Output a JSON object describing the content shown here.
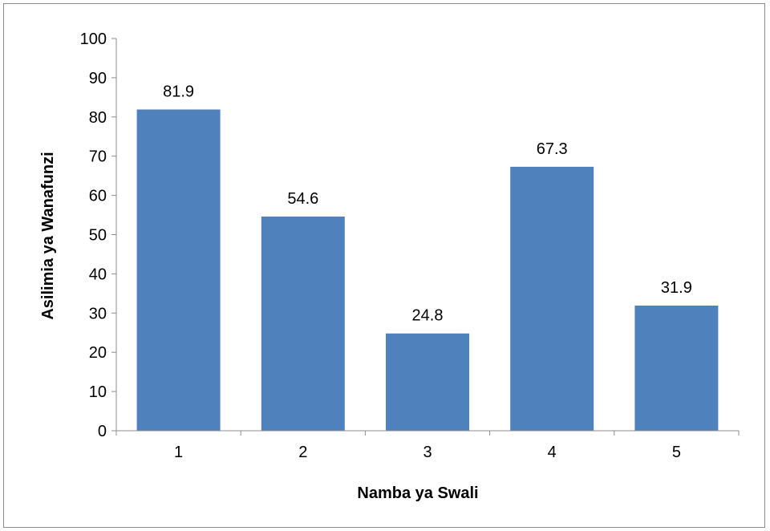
{
  "chart_data": {
    "type": "bar",
    "title": "",
    "xlabel": "Namba ya Swali",
    "ylabel": "Asilimia ya Wanafunzi",
    "categories": [
      "1",
      "2",
      "3",
      "4",
      "5"
    ],
    "values": [
      81.9,
      54.6,
      24.8,
      67.3,
      31.9
    ],
    "data_labels": [
      "81.9",
      "54.6",
      "24.8",
      "67.3",
      "31.9"
    ],
    "ylim": [
      0,
      100
    ],
    "yticks": [
      "0",
      "10",
      "20",
      "30",
      "40",
      "50",
      "60",
      "70",
      "80",
      "90",
      "100"
    ],
    "grid": false,
    "legend": "none",
    "bar_color": "#4f81bd"
  }
}
